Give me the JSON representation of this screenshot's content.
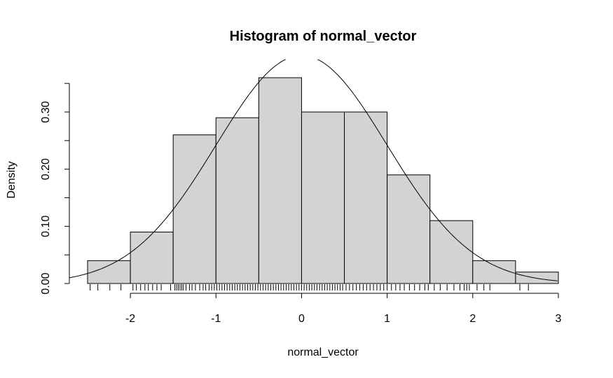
{
  "chart_data": {
    "type": "bar",
    "title": "Histogram of normal_vector",
    "xlabel": "normal_vector",
    "ylabel": "Density",
    "xlim": [
      -2.5,
      3.0
    ],
    "ylim": [
      0,
      0.36
    ],
    "bin_edges": [
      -2.5,
      -2.0,
      -1.5,
      -1.0,
      -0.5,
      0.0,
      0.5,
      1.0,
      1.5,
      2.0,
      2.5,
      3.0
    ],
    "values": [
      0.04,
      0.09,
      0.26,
      0.29,
      0.36,
      0.3,
      0.3,
      0.19,
      0.11,
      0.04,
      0.02
    ],
    "x_ticks": [
      -2,
      -1,
      0,
      1,
      2,
      3
    ],
    "x_tick_labels": [
      "-2",
      "-1",
      "0",
      "1",
      "2",
      "3"
    ],
    "y_ticks": [
      0.0,
      0.05,
      0.1,
      0.15,
      0.2,
      0.25,
      0.3,
      0.35
    ],
    "y_tick_labels": [
      "0.00",
      "",
      "0.10",
      "",
      "0.20",
      "",
      "0.30",
      ""
    ],
    "density_curve": {
      "distribution": "normal",
      "mean": 0,
      "sd": 1
    },
    "rug": [
      -2.47,
      -2.38,
      -2.24,
      -2.11,
      -1.97,
      -1.93,
      -1.88,
      -1.83,
      -1.79,
      -1.74,
      -1.69,
      -1.64,
      -1.53,
      -1.48,
      -1.46,
      -1.44,
      -1.42,
      -1.4,
      -1.38,
      -1.35,
      -1.31,
      -1.28,
      -1.24,
      -1.19,
      -1.15,
      -1.12,
      -1.08,
      -1.05,
      -1.02,
      -0.99,
      -0.96,
      -0.93,
      -0.9,
      -0.87,
      -0.84,
      -0.81,
      -0.78,
      -0.75,
      -0.72,
      -0.69,
      -0.66,
      -0.63,
      -0.6,
      -0.57,
      -0.54,
      -0.51,
      -0.48,
      -0.45,
      -0.42,
      -0.39,
      -0.36,
      -0.33,
      -0.3,
      -0.27,
      -0.24,
      -0.21,
      -0.18,
      -0.15,
      -0.12,
      -0.09,
      -0.06,
      -0.03,
      0.0,
      0.03,
      0.06,
      0.09,
      0.12,
      0.15,
      0.18,
      0.21,
      0.24,
      0.27,
      0.3,
      0.33,
      0.36,
      0.39,
      0.42,
      0.45,
      0.48,
      0.52,
      0.56,
      0.6,
      0.64,
      0.68,
      0.72,
      0.76,
      0.8,
      0.84,
      0.88,
      0.92,
      0.96,
      1.0,
      1.05,
      1.1,
      1.15,
      1.2,
      1.26,
      1.32,
      1.38,
      1.44,
      1.48,
      1.55,
      1.62,
      1.7,
      1.78,
      1.85,
      1.9,
      1.93,
      1.96,
      2.05,
      2.13,
      2.2,
      2.55,
      2.65
    ]
  }
}
